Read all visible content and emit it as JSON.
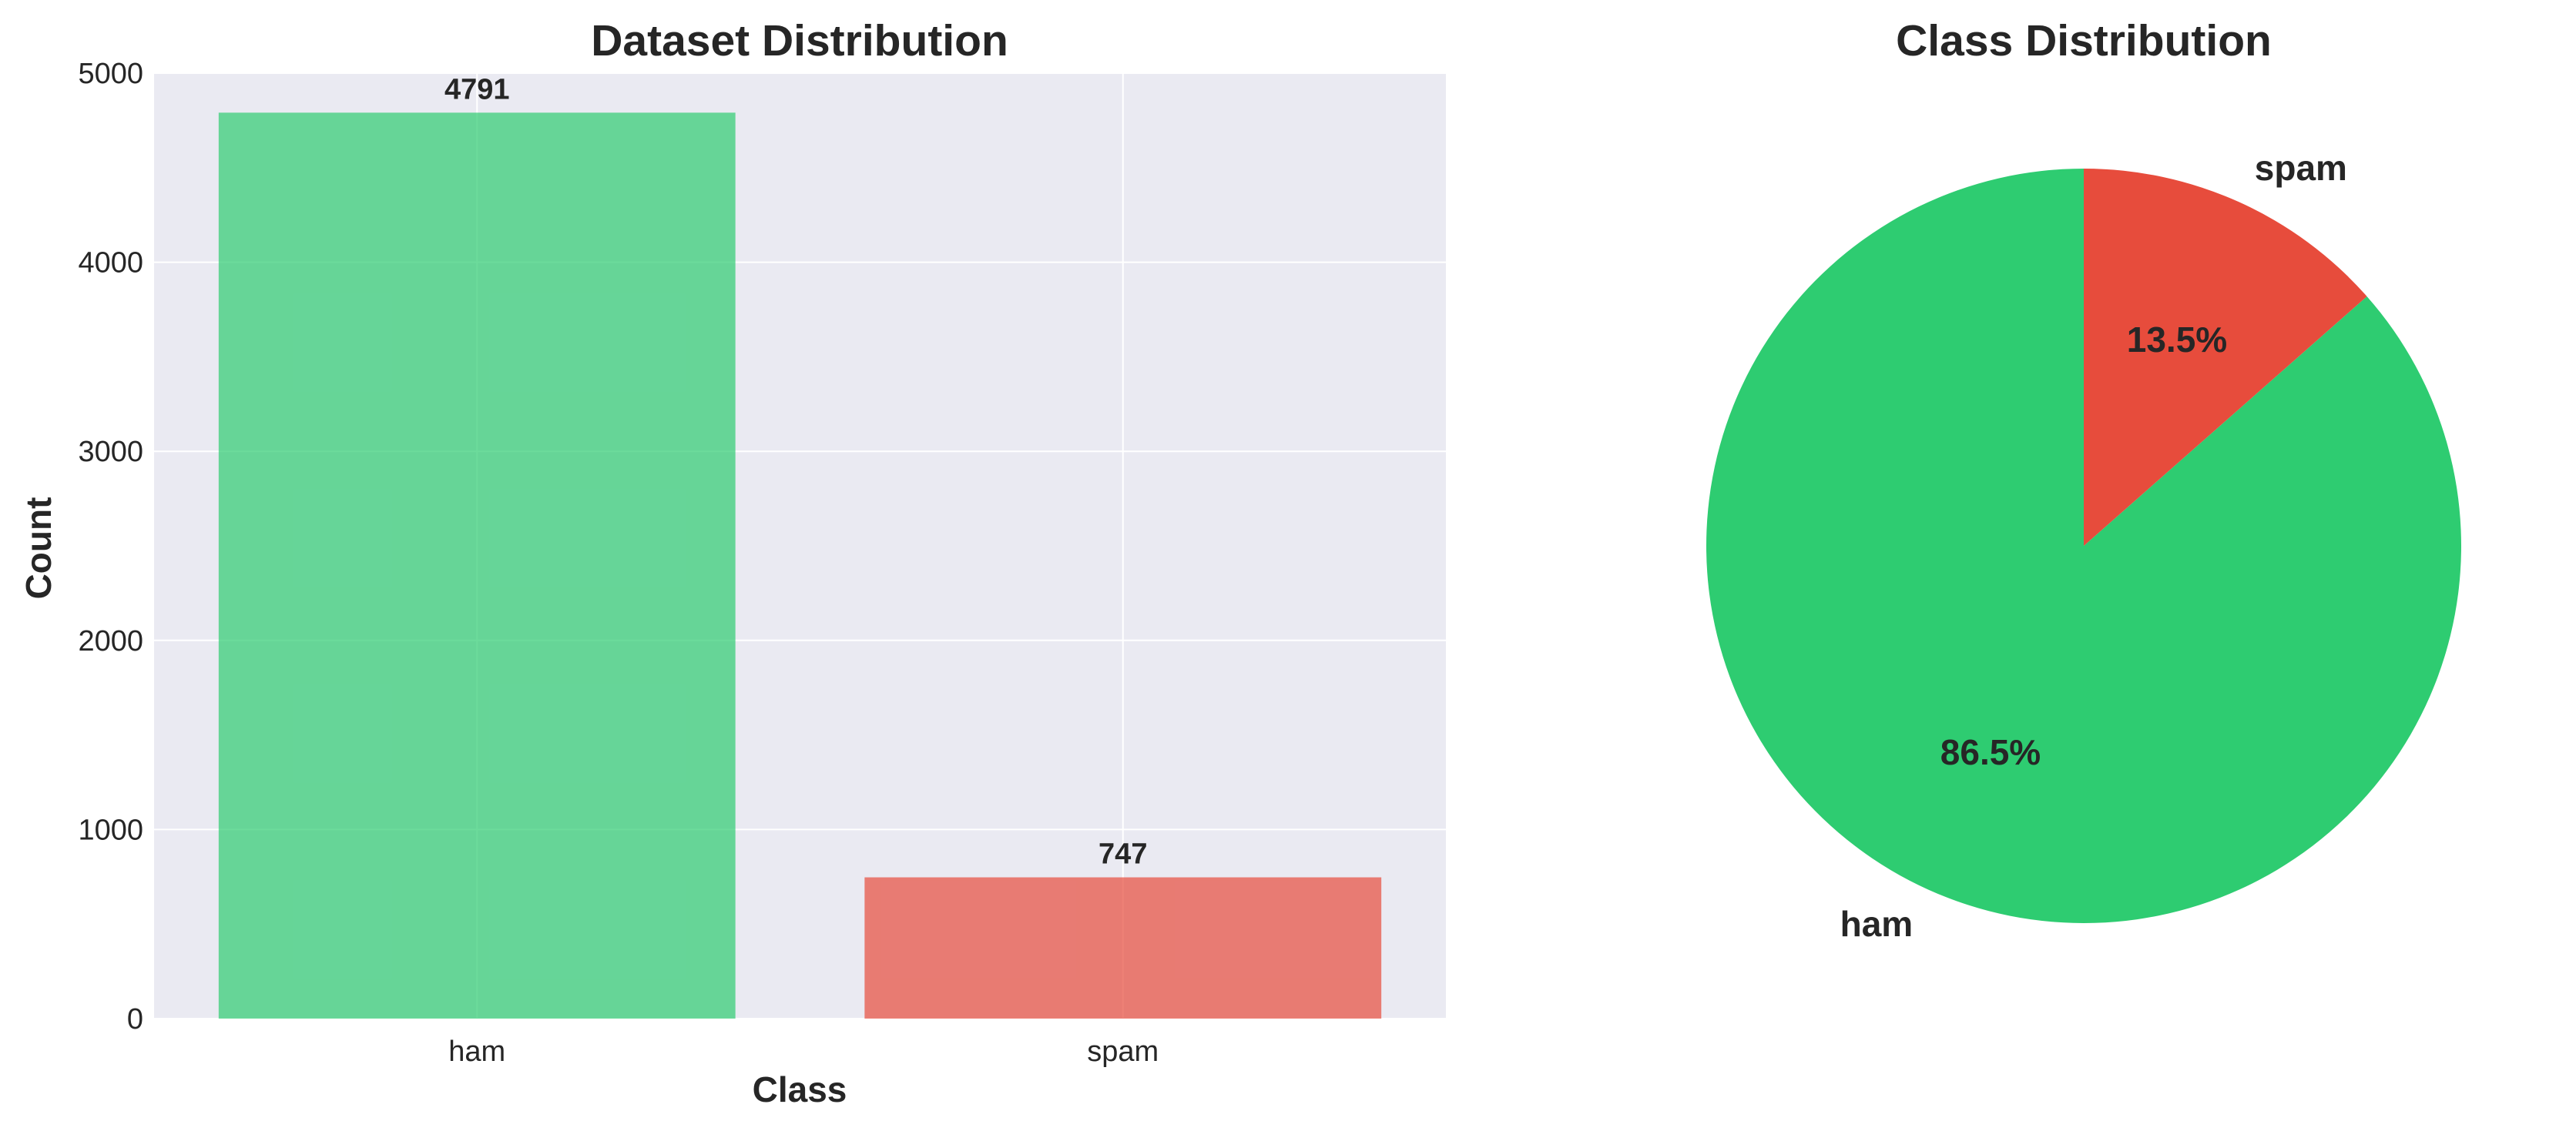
{
  "chart_data": [
    {
      "type": "bar",
      "title": "Dataset Distribution",
      "xlabel": "Class",
      "ylabel": "Count",
      "categories": [
        "ham",
        "spam"
      ],
      "values": [
        4791,
        747
      ],
      "data_labels": [
        "4791",
        "747"
      ],
      "colors": [
        "#2ecc71",
        "#e74c3c"
      ],
      "ylim": [
        0,
        5000
      ],
      "yticks": [
        0,
        1000,
        2000,
        3000,
        4000,
        5000
      ],
      "grid": true
    },
    {
      "type": "pie",
      "title": "Class Distribution",
      "labels": [
        "ham",
        "spam"
      ],
      "values": [
        86.5,
        13.5
      ],
      "pct_labels": [
        "86.5%",
        "13.5%"
      ],
      "colors": [
        "#2ecc71",
        "#e74c3c"
      ]
    }
  ]
}
